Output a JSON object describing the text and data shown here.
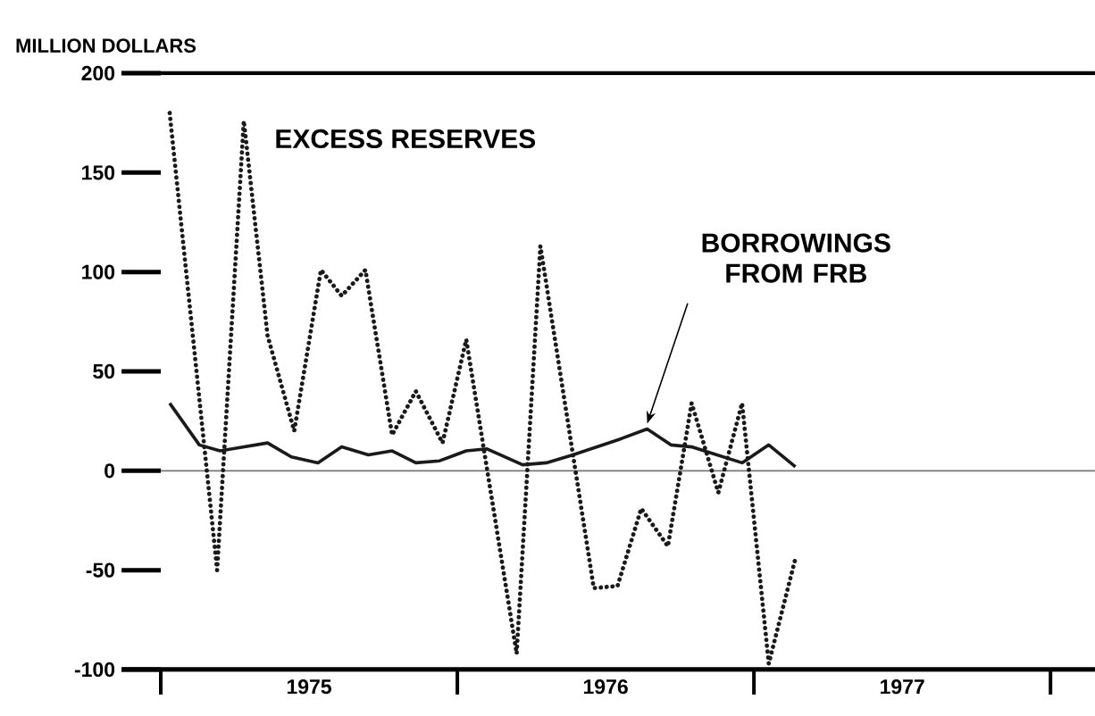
{
  "chart_data": {
    "type": "line",
    "ylabel": "MILLION DOLLARS",
    "ylim": [
      -100,
      200
    ],
    "yticks": [
      -100,
      -50,
      0,
      50,
      100,
      150,
      200
    ],
    "xlim": [
      1975,
      1978.15
    ],
    "xticks": [
      {
        "value": 1975,
        "label": null
      },
      {
        "value": 1975.5,
        "label": "1975"
      },
      {
        "value": 1976,
        "label": null
      },
      {
        "value": 1976.5,
        "label": "1976"
      },
      {
        "value": 1977,
        "label": null
      },
      {
        "value": 1977.5,
        "label": "1977"
      },
      {
        "value": 1978,
        "label": null
      }
    ],
    "ref_lines": [
      {
        "axis": "y",
        "value": 0,
        "color": "#777777"
      }
    ],
    "grid": false,
    "legend": false,
    "marker": "none",
    "series": [
      {
        "name": "EXCESS RESERVES",
        "color": "#1a1a1a",
        "line_style": "dotted",
        "x": [
          1975.03,
          1975.19,
          1975.28,
          1975.36,
          1975.45,
          1975.54,
          1975.61,
          1975.69,
          1975.78,
          1975.86,
          1975.95,
          1976.03,
          1976.2,
          1976.28,
          1976.46,
          1976.54,
          1976.62,
          1976.71,
          1976.79,
          1976.88,
          1976.96,
          1977.05,
          1977.14
        ],
        "values": [
          180,
          -50,
          176,
          68,
          20,
          101,
          88,
          101,
          18,
          40,
          14,
          66,
          -92,
          113,
          -59,
          -58,
          -19,
          -38,
          34,
          -11,
          34,
          -97,
          -44
        ]
      },
      {
        "name": "BORROWINGS FROM FRB",
        "color": "#1a1a1a",
        "line_style": "solid",
        "x": [
          1975.03,
          1975.13,
          1975.2,
          1975.36,
          1975.44,
          1975.53,
          1975.61,
          1975.7,
          1975.78,
          1975.86,
          1975.94,
          1976.03,
          1976.1,
          1976.22,
          1976.3,
          1976.39,
          1976.55,
          1976.64,
          1976.72,
          1976.79,
          1976.96,
          1977.05,
          1977.14
        ],
        "values": [
          34,
          13,
          10,
          14,
          7,
          4,
          12,
          8,
          10,
          4,
          5,
          10,
          11,
          3,
          4,
          8,
          16,
          21,
          13,
          12,
          4,
          13,
          2
        ]
      }
    ]
  }
}
